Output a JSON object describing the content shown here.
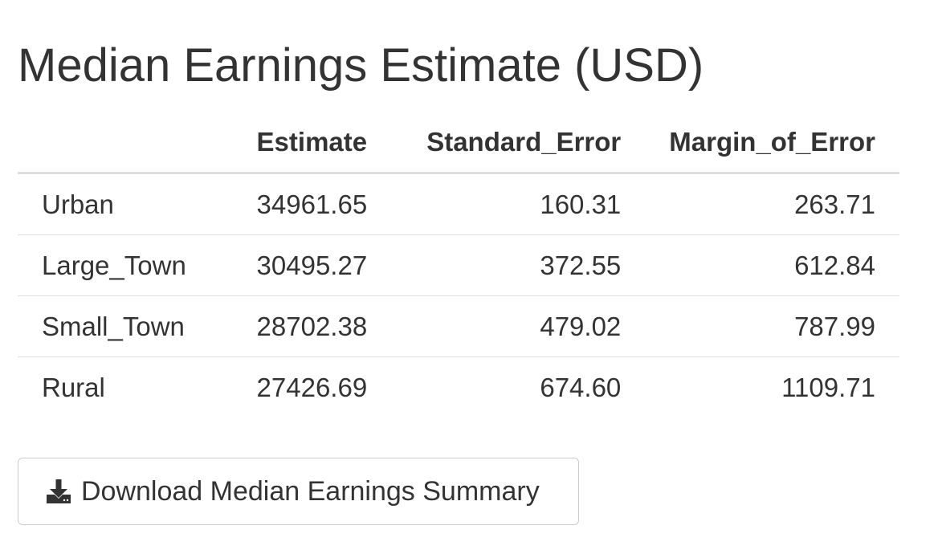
{
  "page": {
    "title": "Median Earnings Estimate (USD)"
  },
  "table": {
    "headers": [
      "",
      "Estimate",
      "Standard_Error",
      "Margin_of_Error"
    ],
    "rows": [
      {
        "label": "Urban",
        "estimate": "34961.65",
        "standard_error": "160.31",
        "margin_of_error": "263.71"
      },
      {
        "label": "Large_Town",
        "estimate": "30495.27",
        "standard_error": "372.55",
        "margin_of_error": "612.84"
      },
      {
        "label": "Small_Town",
        "estimate": "28702.38",
        "standard_error": "479.02",
        "margin_of_error": "787.99"
      },
      {
        "label": "Rural",
        "estimate": "27426.69",
        "standard_error": "674.60",
        "margin_of_error": "1109.71"
      }
    ]
  },
  "download": {
    "label": "Download Median Earnings Summary",
    "icon": "download-icon"
  },
  "colors": {
    "text": "#333333",
    "border": "#dddddd",
    "button_border": "#cccccc"
  }
}
